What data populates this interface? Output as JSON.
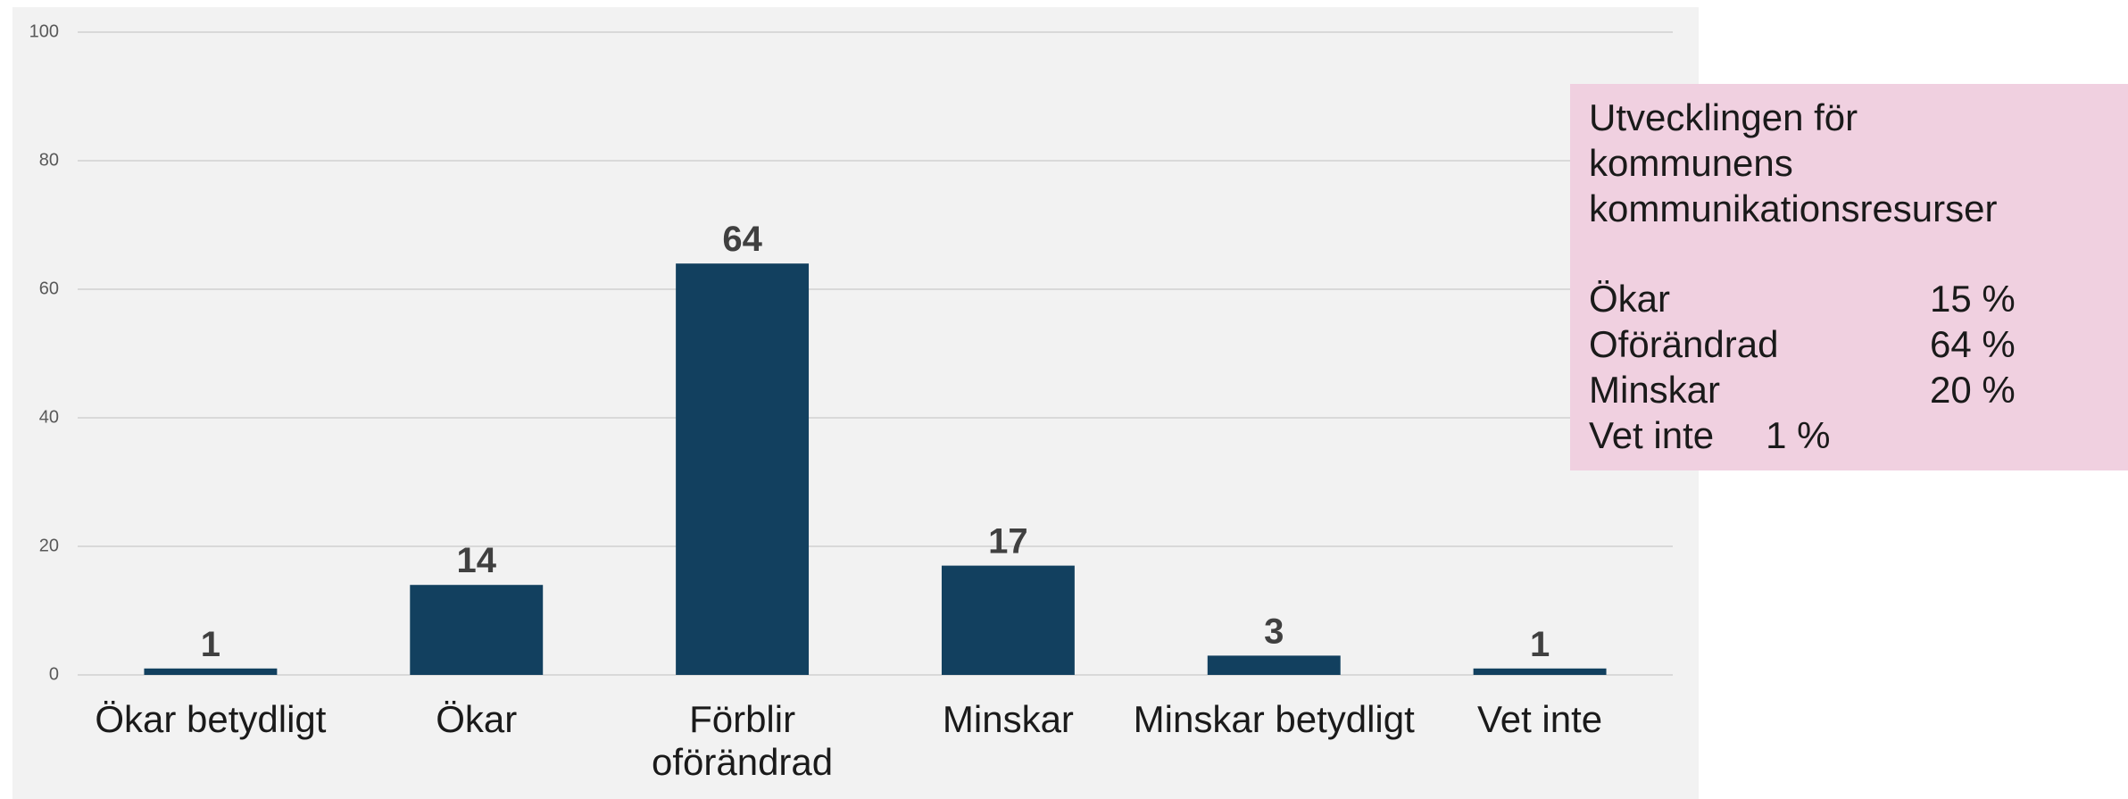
{
  "chart_data": {
    "type": "bar",
    "categories": [
      "Ökar betydligt",
      "Ökar",
      "Förblir oförändrad",
      "Minskar",
      "Minskar betydligt",
      "Vet inte"
    ],
    "values": [
      1,
      14,
      64,
      17,
      3,
      1
    ],
    "color": "#12405f",
    "ylim": [
      0,
      100
    ],
    "yticks": [
      0,
      20,
      40,
      60,
      80,
      100
    ],
    "grid": true,
    "annotation": {
      "title_lines": [
        "Utvecklingen för",
        "kommunens",
        "kommunikationsresurser"
      ],
      "rows": [
        {
          "label": "Ökar",
          "value": "15 %"
        },
        {
          "label": "Oförändrad",
          "value": "64 %"
        },
        {
          "label": "Minskar",
          "value": "20 %"
        },
        {
          "label": "Vet inte",
          "value": "1 %"
        }
      ]
    }
  }
}
